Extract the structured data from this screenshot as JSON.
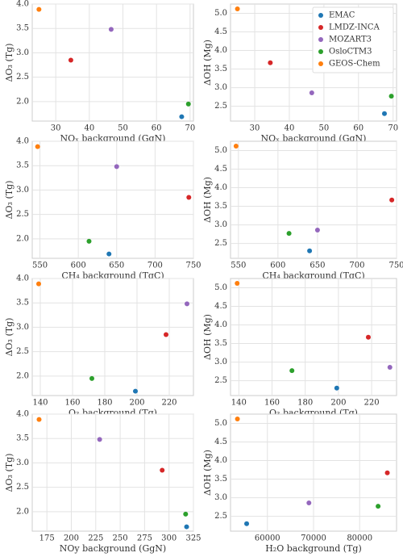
{
  "chart_data": [
    {
      "type": "scatter",
      "xlabel": "NOₓ background (GgN)",
      "ylabel": "ΔO₃ (Tg)",
      "xlim": [
        23,
        71
      ],
      "xticks": [
        30,
        40,
        50,
        60,
        70
      ],
      "ylim": [
        1.6,
        4.0
      ],
      "yticks": [
        {
          "value": 2,
          "label": "2.0"
        },
        {
          "value": 2.5,
          "label": "2.5"
        },
        {
          "value": 3,
          "label": "3.0"
        },
        {
          "value": 3.5,
          "label": "3.5"
        },
        {
          "value": 4,
          "label": "4.0"
        }
      ],
      "grid": true,
      "series": [
        {
          "color": "#1f77b4",
          "x": [
            67.5
          ],
          "values": [
            1.69
          ]
        },
        {
          "color": "#d62728",
          "x": [
            34.5
          ],
          "values": [
            2.85
          ]
        },
        {
          "color": "#9467bd",
          "x": [
            46.5
          ],
          "values": [
            3.48
          ]
        },
        {
          "color": "#2ca02c",
          "x": [
            69.5
          ],
          "values": [
            1.95
          ]
        },
        {
          "color": "#ff7f0e",
          "x": [
            25
          ],
          "values": [
            3.89
          ]
        }
      ]
    },
    {
      "type": "scatter",
      "xlabel": "NOₓ background (GgN)",
      "ylabel": "ΔOH (Mg)",
      "xlim": [
        23,
        71
      ],
      "xticks": [
        30,
        40,
        50,
        60,
        70
      ],
      "ylim": [
        2.1,
        5.25
      ],
      "yticks": [
        {
          "value": 2.5,
          "label": "2.5"
        },
        {
          "value": 3,
          "label": "3.0"
        },
        {
          "value": 3.5,
          "label": "3.5"
        },
        {
          "value": 4,
          "label": "4.0"
        },
        {
          "value": 4.5,
          "label": "4.5"
        },
        {
          "value": 5,
          "label": "5.0"
        }
      ],
      "grid": true,
      "legend": "upper right",
      "series": [
        {
          "name": "EMAC",
          "color": "#1f77b4",
          "x": [
            67.5
          ],
          "values": [
            2.3
          ]
        },
        {
          "name": "LMDZ-INCA",
          "color": "#d62728",
          "x": [
            34.5
          ],
          "values": [
            3.67
          ]
        },
        {
          "name": "MOZART3",
          "color": "#9467bd",
          "x": [
            46.5
          ],
          "values": [
            2.86
          ]
        },
        {
          "name": "OsloCTM3",
          "color": "#2ca02c",
          "x": [
            69.5
          ],
          "values": [
            2.77
          ]
        },
        {
          "name": "GEOS-Chem",
          "color": "#ff7f0e",
          "x": [
            25
          ],
          "values": [
            5.12
          ]
        }
      ]
    },
    {
      "type": "scatter",
      "xlabel": "CH₄ background (TgC)",
      "ylabel": "ΔO₃ (Tg)",
      "xlim": [
        540,
        750
      ],
      "xticks": [
        550,
        600,
        650,
        700,
        750
      ],
      "ylim": [
        1.6,
        4.0
      ],
      "yticks": [
        {
          "value": 2,
          "label": "2.0"
        },
        {
          "value": 2.5,
          "label": "2.5"
        },
        {
          "value": 3,
          "label": "3.0"
        },
        {
          "value": 3.5,
          "label": "3.5"
        },
        {
          "value": 4,
          "label": "4.0"
        }
      ],
      "grid": true,
      "series": [
        {
          "color": "#1f77b4",
          "x": [
            640
          ],
          "values": [
            1.69
          ]
        },
        {
          "color": "#d62728",
          "x": [
            744
          ],
          "values": [
            2.85
          ]
        },
        {
          "color": "#9467bd",
          "x": [
            650
          ],
          "values": [
            3.48
          ]
        },
        {
          "color": "#2ca02c",
          "x": [
            614
          ],
          "values": [
            1.95
          ]
        },
        {
          "color": "#ff7f0e",
          "x": [
            547
          ],
          "values": [
            3.89
          ]
        }
      ]
    },
    {
      "type": "scatter",
      "xlabel": "CH₄ background (TgC)",
      "ylabel": "ΔOH (Mg)",
      "xlim": [
        540,
        750
      ],
      "xticks": [
        550,
        600,
        650,
        700,
        750
      ],
      "ylim": [
        2.1,
        5.25
      ],
      "yticks": [
        {
          "value": 2.5,
          "label": "2.5"
        },
        {
          "value": 3,
          "label": "3.0"
        },
        {
          "value": 3.5,
          "label": "3.5"
        },
        {
          "value": 4,
          "label": "4.0"
        },
        {
          "value": 4.5,
          "label": "4.5"
        },
        {
          "value": 5,
          "label": "5.0"
        }
      ],
      "grid": true,
      "series": [
        {
          "color": "#1f77b4",
          "x": [
            640
          ],
          "values": [
            2.3
          ]
        },
        {
          "color": "#d62728",
          "x": [
            744
          ],
          "values": [
            3.67
          ]
        },
        {
          "color": "#9467bd",
          "x": [
            650
          ],
          "values": [
            2.86
          ]
        },
        {
          "color": "#2ca02c",
          "x": [
            614
          ],
          "values": [
            2.77
          ]
        },
        {
          "color": "#ff7f0e",
          "x": [
            547
          ],
          "values": [
            5.12
          ]
        }
      ]
    },
    {
      "type": "scatter",
      "xlabel": "O₃ background (Tg)",
      "ylabel": "ΔO₃ (Tg)",
      "xlim": [
        135,
        235
      ],
      "xticks": [
        140,
        160,
        180,
        200,
        220
      ],
      "ylim": [
        1.6,
        4.0
      ],
      "yticks": [
        {
          "value": 2,
          "label": "2.0"
        },
        {
          "value": 2.5,
          "label": "2.5"
        },
        {
          "value": 3,
          "label": "3.0"
        },
        {
          "value": 3.5,
          "label": "3.5"
        },
        {
          "value": 4,
          "label": "4.0"
        }
      ],
      "grid": true,
      "series": [
        {
          "color": "#1f77b4",
          "x": [
            199
          ],
          "values": [
            1.69
          ]
        },
        {
          "color": "#d62728",
          "x": [
            218
          ],
          "values": [
            2.85
          ]
        },
        {
          "color": "#9467bd",
          "x": [
            231
          ],
          "values": [
            3.48
          ]
        },
        {
          "color": "#2ca02c",
          "x": [
            172
          ],
          "values": [
            1.95
          ]
        },
        {
          "color": "#ff7f0e",
          "x": [
            139
          ],
          "values": [
            3.89
          ]
        }
      ]
    },
    {
      "type": "scatter",
      "xlabel": "O₃ background (Tg)",
      "ylabel": "ΔOH (Mg)",
      "xlim": [
        135,
        235
      ],
      "xticks": [
        140,
        160,
        180,
        200,
        220
      ],
      "ylim": [
        2.1,
        5.25
      ],
      "yticks": [
        {
          "value": 2.5,
          "label": "2.5"
        },
        {
          "value": 3,
          "label": "3.0"
        },
        {
          "value": 3.5,
          "label": "3.5"
        },
        {
          "value": 4,
          "label": "4.0"
        },
        {
          "value": 4.5,
          "label": "4.5"
        },
        {
          "value": 5,
          "label": "5.0"
        }
      ],
      "grid": true,
      "series": [
        {
          "color": "#1f77b4",
          "x": [
            199
          ],
          "values": [
            2.3
          ]
        },
        {
          "color": "#d62728",
          "x": [
            218
          ],
          "values": [
            3.67
          ]
        },
        {
          "color": "#9467bd",
          "x": [
            231
          ],
          "values": [
            2.86
          ]
        },
        {
          "color": "#2ca02c",
          "x": [
            172
          ],
          "values": [
            2.77
          ]
        },
        {
          "color": "#ff7f0e",
          "x": [
            139
          ],
          "values": [
            5.12
          ]
        }
      ]
    },
    {
      "type": "scatter",
      "xlabel": "NOy background (GgN)",
      "ylabel": "ΔO₃ (Tg)",
      "xlim": [
        160,
        325
      ],
      "xticks": [
        175,
        200,
        225,
        250,
        275,
        300,
        325
      ],
      "ylim": [
        1.6,
        4.0
      ],
      "yticks": [
        {
          "value": 2,
          "label": "2.0"
        },
        {
          "value": 2.5,
          "label": "2.5"
        },
        {
          "value": 3,
          "label": "3.0"
        },
        {
          "value": 3.5,
          "label": "3.5"
        },
        {
          "value": 4,
          "label": "4.0"
        }
      ],
      "grid": true,
      "series": [
        {
          "color": "#1f77b4",
          "x": [
            318
          ],
          "values": [
            1.69
          ]
        },
        {
          "color": "#d62728",
          "x": [
            293
          ],
          "values": [
            2.85
          ]
        },
        {
          "color": "#9467bd",
          "x": [
            229
          ],
          "values": [
            3.48
          ]
        },
        {
          "color": "#2ca02c",
          "x": [
            317
          ],
          "values": [
            1.95
          ]
        },
        {
          "color": "#ff7f0e",
          "x": [
            167
          ],
          "values": [
            3.89
          ]
        }
      ]
    },
    {
      "type": "scatter",
      "xlabel": "H₂O background (Tg)",
      "ylabel": "ΔOH (Mg)",
      "xlim": [
        52000,
        88000
      ],
      "xticks": [
        60000,
        70000,
        80000
      ],
      "ylim": [
        2.1,
        5.25
      ],
      "yticks": [
        {
          "value": 2.5,
          "label": "2.5"
        },
        {
          "value": 3,
          "label": "3.0"
        },
        {
          "value": 3.5,
          "label": "3.5"
        },
        {
          "value": 4,
          "label": "4.0"
        },
        {
          "value": 4.5,
          "label": "4.5"
        },
        {
          "value": 5,
          "label": "5.0"
        }
      ],
      "grid": true,
      "series": [
        {
          "color": "#1f77b4",
          "x": [
            55500
          ],
          "values": [
            2.3
          ]
        },
        {
          "color": "#d62728",
          "x": [
            86000
          ],
          "values": [
            3.67
          ]
        },
        {
          "color": "#9467bd",
          "x": [
            69000
          ],
          "values": [
            2.86
          ]
        },
        {
          "color": "#2ca02c",
          "x": [
            84000
          ],
          "values": [
            2.77
          ]
        },
        {
          "color": "#ff7f0e",
          "x": [
            53500
          ],
          "values": [
            5.12
          ]
        }
      ]
    }
  ]
}
